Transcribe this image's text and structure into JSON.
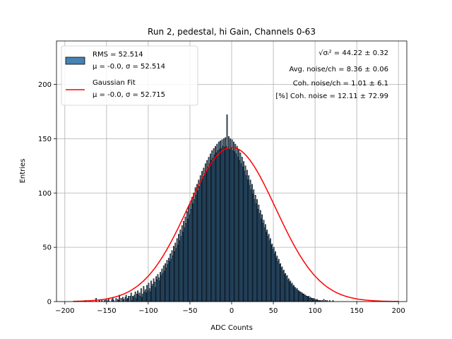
{
  "chart_data": {
    "type": "bar",
    "title": "Run 2, pedestal, hi Gain, Channels 0-63",
    "xlabel": "ADC Counts",
    "ylabel": "Entries",
    "xlim": [
      -210,
      210
    ],
    "ylim": [
      0,
      240
    ],
    "xticks": [
      "−200",
      "−150",
      "−100",
      "−50",
      "0",
      "50",
      "100",
      "150",
      "200"
    ],
    "yticks": [
      "0",
      "50",
      "100",
      "150",
      "200"
    ],
    "grid": true,
    "legend_position": "top-left",
    "histogram": {
      "name": "RMS = 52.514",
      "sub": "μ = -0.0, σ = 52.514",
      "bin_width": 1,
      "x_start": -190,
      "color": "#4682b4",
      "edge_color": "#000000",
      "counts": [
        0,
        0,
        0,
        0,
        0,
        0,
        0,
        0,
        0,
        0,
        0,
        0,
        0,
        0,
        1,
        0,
        0,
        0,
        0,
        0,
        0,
        0,
        0,
        0,
        0,
        0,
        0,
        3,
        0,
        0,
        0,
        1,
        0,
        0,
        2,
        0,
        0,
        1,
        0,
        2,
        0,
        1,
        3,
        0,
        0,
        0,
        2,
        4,
        1,
        0,
        0,
        3,
        0,
        2,
        1,
        6,
        0,
        3,
        0,
        4,
        2,
        0,
        4,
        6,
        2,
        3,
        5,
        0,
        5,
        8,
        1,
        5,
        4,
        6,
        9,
        3,
        7,
        10,
        6,
        8,
        5,
        12,
        4,
        7,
        14,
        9,
        11,
        8,
        15,
        10,
        17,
        12,
        9,
        19,
        14,
        16,
        21,
        18,
        13,
        23,
        20,
        25,
        22,
        19,
        27,
        24,
        30,
        26,
        33,
        28,
        35,
        31,
        38,
        34,
        40,
        37,
        44,
        39,
        47,
        42,
        51,
        46,
        54,
        49,
        58,
        52,
        62,
        56,
        66,
        60,
        70,
        64,
        74,
        68,
        78,
        72,
        83,
        76,
        88,
        80,
        92,
        85,
        96,
        90,
        100,
        94,
        105,
        98,
        108,
        102,
        112,
        106,
        116,
        110,
        120,
        113,
        123,
        117,
        127,
        120,
        130,
        124,
        133,
        127,
        136,
        130,
        139,
        132,
        141,
        135,
        143,
        137,
        145,
        139,
        147,
        140,
        148,
        141,
        149,
        143,
        150,
        142,
        151,
        143,
        172,
        141,
        152,
        140,
        150,
        142,
        149,
        139,
        147,
        138,
        145,
        136,
        143,
        133,
        140,
        130,
        137,
        127,
        133,
        124,
        129,
        120,
        125,
        116,
        121,
        112,
        116,
        107,
        112,
        103,
        108,
        99,
        103,
        94,
        98,
        90,
        94,
        85,
        89,
        81,
        84,
        76,
        80,
        72,
        75,
        68,
        71,
        64,
        66,
        60,
        62,
        56,
        58,
        52,
        53,
        48,
        50,
        44,
        46,
        40,
        42,
        37,
        39,
        34,
        35,
        31,
        32,
        28,
        29,
        25,
        26,
        23,
        24,
        20,
        21,
        18,
        19,
        16,
        17,
        14,
        15,
        13,
        13,
        11,
        12,
        10,
        10,
        9,
        9,
        8,
        8,
        7,
        7,
        6,
        6,
        5,
        5,
        4,
        5,
        3,
        4,
        3,
        3,
        2,
        3,
        2,
        2,
        1,
        2,
        1,
        1,
        1,
        1,
        0,
        1,
        0,
        2,
        0,
        1,
        0,
        1,
        0,
        0,
        1,
        0,
        0,
        0,
        1,
        0,
        0,
        0,
        0,
        0,
        0,
        0,
        0,
        0,
        0,
        0,
        0,
        0,
        0,
        0,
        0,
        0,
        0,
        0,
        0,
        0,
        0,
        0,
        0,
        0,
        0,
        0,
        0,
        0,
        0,
        0,
        0,
        0,
        0,
        0,
        0,
        0,
        0,
        0,
        0,
        0,
        0,
        0,
        0,
        0,
        0,
        0,
        0,
        0,
        0,
        0,
        0,
        0,
        0,
        0,
        0,
        0,
        0,
        0,
        0,
        0,
        0,
        0,
        0,
        0,
        0,
        0,
        0,
        0,
        0,
        0,
        0,
        0,
        0,
        0,
        0,
        0,
        0,
        0,
        0,
        0,
        0,
        0,
        0,
        0,
        0,
        0,
        0,
        0,
        0,
        0,
        0,
        0,
        0,
        0,
        0,
        0,
        0,
        0,
        0,
        0
      ]
    },
    "series": [
      {
        "name": "Gaussian Fit",
        "sub": "μ = -0.0, σ = 52.715",
        "color": "#ff0000",
        "type": "gaussian",
        "mu": 0.0,
        "sigma": 52.715,
        "amplitude": 142,
        "x_range": [
          -190,
          200
        ]
      }
    ],
    "stats": [
      "√σᵢ² = 44.22 ± 0.32",
      "Avg. noise/ch = 8.36 ± 0.06",
      "Coh. noise/ch = 1.01 ± 6.1",
      "[%] Coh. noise = 12.11 ± 72.99"
    ]
  }
}
